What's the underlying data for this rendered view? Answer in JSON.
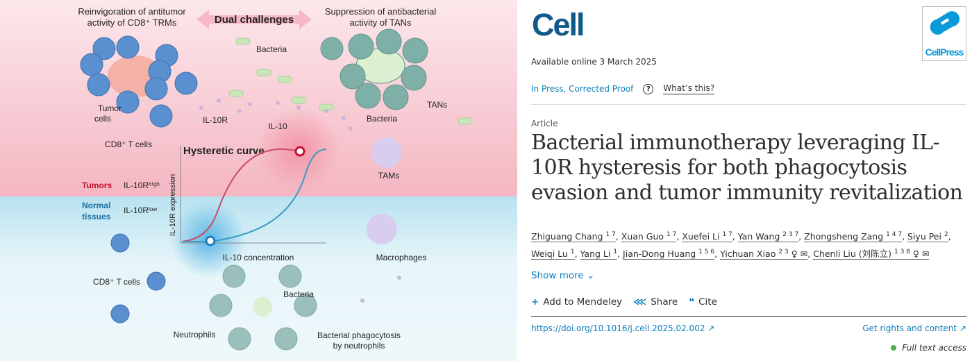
{
  "figure": {
    "left_title_1": "Reinvigoration of antitumor",
    "left_title_2": "activity of CD8⁺ TRMs",
    "center_title": "Dual challenges",
    "right_title_1": "Suppression of antibacterial",
    "right_title_2": "activity of TANs",
    "bacteria": "Bacteria",
    "tumor_cells_1": "Tumor",
    "tumor_cells_2": "cells",
    "il10r": "IL-10R",
    "il10": "IL-10",
    "cd8_t_cells": "CD8⁺ T cells",
    "tans": "TANs",
    "bacteria_2": "Bacteria",
    "tams": "TAMs",
    "hysteretic_curve": "Hysteretic curve",
    "y_axis": "IL-10R expression",
    "x_axis": "IL-10 concentration",
    "tumors": "Tumors",
    "il10r_high": "IL-10Rʰⁱᵍʰ",
    "normal_1": "Normal",
    "normal_2": "tissues",
    "il10r_low": "IL-10Rˡᵒʷ",
    "macrophages": "Macrophages",
    "cd8_t_cells_2": "CD8⁺ T cells",
    "bacteria_3": "Bacteria",
    "neutrophils": "Neutrophils",
    "phago_1": "Bacterial phagocytosis",
    "phago_2": "by neutrophils",
    "colors": {
      "tumor_bg": "#fbe3e7",
      "normal_bg": "#e3f4f8",
      "high_curve": "#c94a6a",
      "low_curve": "#3a9bc0",
      "t_cell": "#4f7fc4",
      "neutrophil": "#6fa8a2"
    }
  },
  "article": {
    "journal_logo": "Cell",
    "publisher_logo": "CellPress",
    "available": "Available online 3 March 2025",
    "status": "In Press, Corrected Proof",
    "help_icon": "?",
    "whats_this": "What’s this?",
    "type": "Article",
    "title": "Bacterial immunotherapy leveraging IL-10R hysteresis for both phagocytosis evasion and tumor immunity revitalization",
    "authors": [
      {
        "name": "Zhiguang Chang",
        "sup": "1 7"
      },
      {
        "name": "Xuan Guo",
        "sup": "1 7"
      },
      {
        "name": "Xuefei Li",
        "sup": "1 7"
      },
      {
        "name": "Yan Wang",
        "sup": "2 3 7"
      },
      {
        "name": "Zhongsheng Zang",
        "sup": "1 4 7"
      },
      {
        "name": "Siyu Pei",
        "sup": "2"
      },
      {
        "name": "Weiqi Lu",
        "sup": "1"
      },
      {
        "name": "Yang Li",
        "sup": "1"
      },
      {
        "name": "Jian-Dong Huang",
        "sup": "1 5 6"
      },
      {
        "name": "Yichuan Xiao",
        "sup": "2 3",
        "icons": "♀ ✉"
      },
      {
        "name": "Chenli Liu (刘陈立)",
        "sup": "1 3 8",
        "icons": "♀ ✉"
      }
    ],
    "show_more": "Show more",
    "actions": {
      "mendeley": "Add to Mendeley",
      "share": "Share",
      "cite": "Cite"
    },
    "doi": "https://doi.org/10.1016/j.cell.2025.02.002 ↗",
    "rights": "Get rights and content ↗",
    "access": "Full text access"
  }
}
